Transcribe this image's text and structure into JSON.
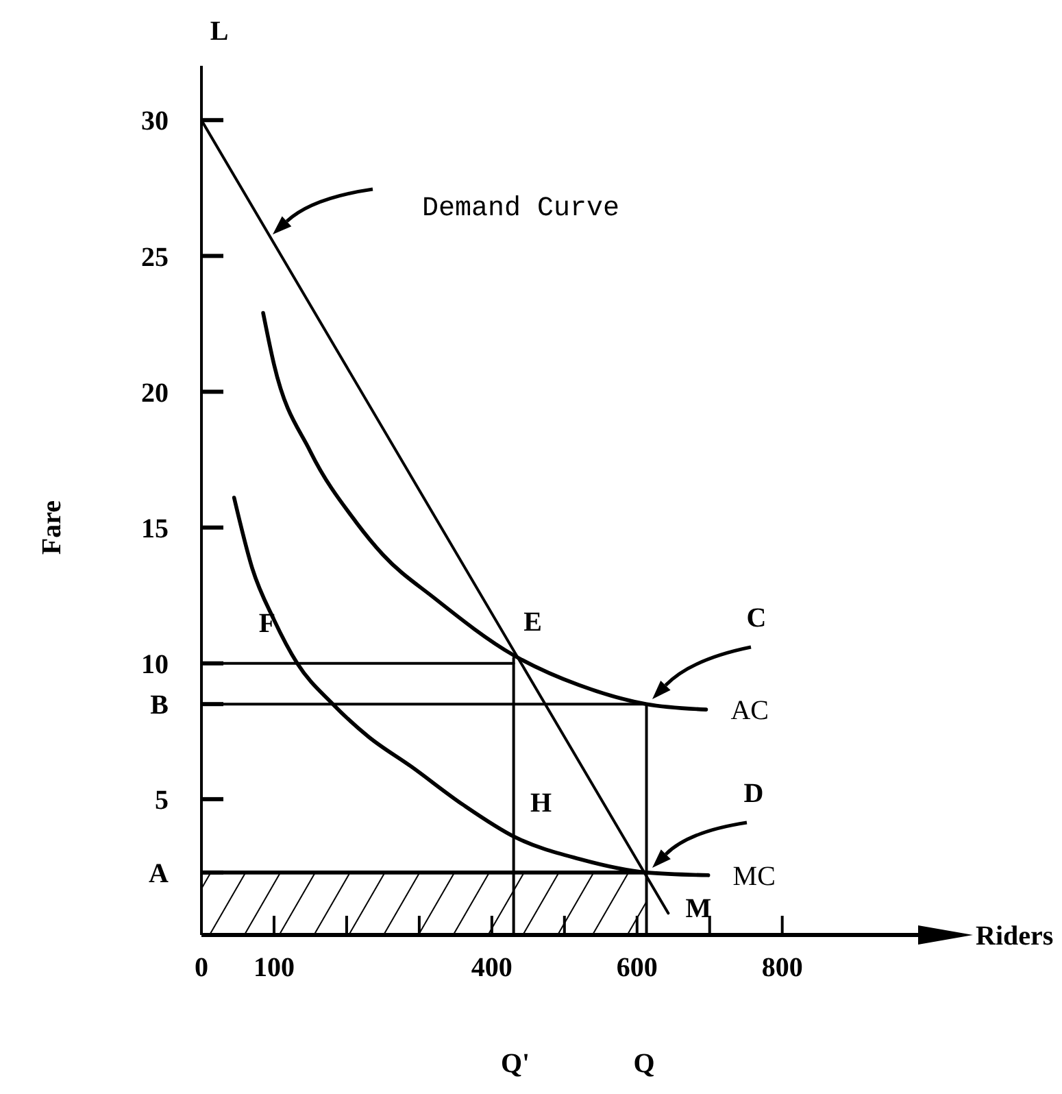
{
  "chart_data": {
    "type": "line",
    "xlabel": "Riders",
    "ylabel": "Fare",
    "xlim": [
      0,
      1040
    ],
    "ylim": [
      0,
      32
    ],
    "xticks": [
      0,
      100,
      {
        "value": 200,
        "label": null
      },
      {
        "value": 300,
        "label": null
      },
      400,
      {
        "value": 500,
        "label": null
      },
      600,
      {
        "value": 700,
        "label": null
      },
      800
    ],
    "yticks": [
      {
        "value": 2.3,
        "label": "A"
      },
      5,
      {
        "value": 8.5,
        "label": "B"
      },
      10,
      15,
      20,
      25,
      30
    ],
    "grid": false,
    "legend": "right",
    "marker": "none",
    "series": [
      {
        "color": "#000000",
        "x": [
          0,
          643
        ],
        "values": [
          30,
          0.8
        ]
      },
      {
        "name": "AC",
        "color": "#000000",
        "x": [
          85,
          100,
          150,
          213,
          250,
          321,
          430,
          520,
          613,
          695
        ],
        "values": [
          22.9,
          21,
          17.8,
          15.2,
          14,
          12.4,
          10.3,
          9.2,
          8.5,
          8.3
        ]
      },
      {
        "name": "MC",
        "color": "#000000",
        "x": [
          45,
          70,
          100,
          132,
          181,
          230,
          289,
          360,
          432,
          520,
          613,
          698
        ],
        "values": [
          16.1,
          13.5,
          11.6,
          10,
          8.5,
          7.3,
          6.2,
          4.8,
          3.6,
          2.8,
          2.3,
          2.2
        ]
      },
      {
        "color": "#000000",
        "x": [
          0,
          430
        ],
        "values": [
          10,
          10
        ]
      },
      {
        "color": "#000000",
        "x": [
          0,
          613
        ],
        "values": [
          8.5,
          8.5
        ]
      },
      {
        "color": "#000000",
        "x": [
          430,
          430
        ],
        "values": [
          0,
          10.2
        ]
      },
      {
        "color": "#000000",
        "x": [
          613,
          613
        ],
        "values": [
          0,
          8.5
        ]
      },
      {
        "type": "area",
        "color": "#000000",
        "x": [
          0,
          613
        ],
        "values": [
          2.3,
          2.3
        ]
      }
    ],
    "annotations": [
      "Demand Curve",
      "C",
      "D",
      {
        "text": "E",
        "x": 430,
        "y": 10.2
      },
      {
        "text": "F",
        "x": 0,
        "y": 10
      },
      {
        "text": "H",
        "x": 430,
        "y": 4.9
      },
      {
        "text": "M",
        "x": 643,
        "y": 0.8
      },
      "L",
      "Q'",
      "Q"
    ]
  }
}
